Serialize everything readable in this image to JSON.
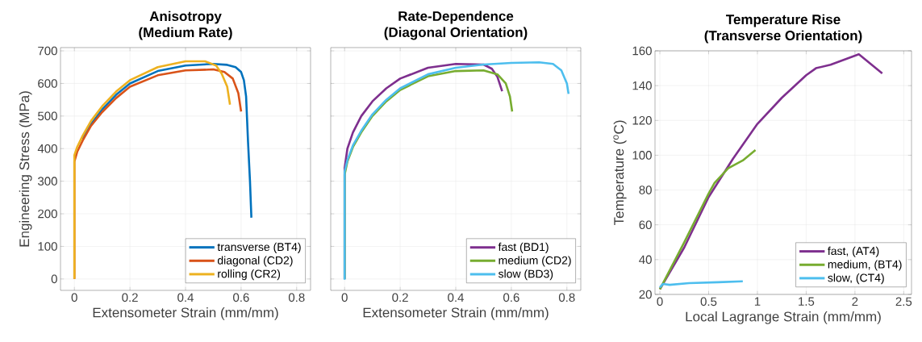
{
  "chart_data": [
    {
      "type": "line",
      "title": "Anisotropy",
      "subtitle": "(Medium Rate)",
      "xlabel": "Extensometer Strain (mm/mm)",
      "ylabel": "Engineering Stress (MPa)",
      "xlim": [
        -0.05,
        0.85
      ],
      "ylim": [
        -35,
        710
      ],
      "xticks": [
        0,
        0.2,
        0.4,
        0.6,
        0.8
      ],
      "yticks": [
        0,
        100,
        200,
        300,
        400,
        500,
        600,
        700
      ],
      "grid": true,
      "legend": "bottom right",
      "series": [
        {
          "name": "transverse (BT4)",
          "color": "#0072bd",
          "x": [
            0.03,
            0.06,
            0.1,
            0.15,
            0.2,
            0.3,
            0.4,
            0.5,
            0.55,
            0.58,
            0.6,
            0.61,
            0.618,
            0.625,
            0.632,
            0.637
          ],
          "values": [
            430,
            475,
            520,
            565,
            600,
            638,
            655,
            660,
            657,
            650,
            635,
            610,
            560,
            420,
            300,
            188
          ]
        },
        {
          "name": "diagonal (CD2)",
          "color": "#d95319",
          "x": [
            0,
            0,
            0.01,
            0.03,
            0.06,
            0.1,
            0.15,
            0.2,
            0.3,
            0.4,
            0.5,
            0.54,
            0.57,
            0.59,
            0.6
          ],
          "values": [
            0,
            360,
            390,
            425,
            470,
            512,
            555,
            590,
            625,
            640,
            643,
            635,
            615,
            570,
            514
          ]
        },
        {
          "name": "rolling (CR2)",
          "color": "#edb120",
          "x": [
            0,
            0,
            0.01,
            0.03,
            0.06,
            0.1,
            0.15,
            0.2,
            0.3,
            0.4,
            0.47,
            0.51,
            0.53,
            0.55,
            0.56
          ],
          "values": [
            0,
            380,
            405,
            440,
            485,
            530,
            575,
            610,
            650,
            668,
            668,
            655,
            630,
            590,
            535
          ]
        }
      ]
    },
    {
      "type": "line",
      "title": "Rate-Dependence",
      "subtitle": "(Diagonal Orientation)",
      "xlabel": "Extensometer Strain (mm/mm)",
      "xlim": [
        -0.05,
        0.85
      ],
      "ylim": [
        -35,
        710
      ],
      "xticks": [
        0,
        0.2,
        0.4,
        0.6,
        0.8
      ],
      "yticks": [
        0,
        100,
        200,
        300,
        400,
        500,
        600,
        700
      ],
      "grid": true,
      "legend": "bottom right",
      "tick_labels": "x",
      "series": [
        {
          "name": "fast (BD1)",
          "color": "#7e2f8e",
          "x": [
            0,
            0,
            0.01,
            0.03,
            0.06,
            0.1,
            0.15,
            0.2,
            0.3,
            0.4,
            0.5,
            0.53,
            0.55,
            0.567
          ],
          "values": [
            0,
            340,
            400,
            450,
            500,
            545,
            585,
            615,
            648,
            660,
            658,
            645,
            620,
            576
          ]
        },
        {
          "name": "medium (CD2)",
          "color": "#77ac30",
          "x": [
            0,
            0,
            0.01,
            0.03,
            0.06,
            0.1,
            0.15,
            0.2,
            0.3,
            0.4,
            0.5,
            0.55,
            0.58,
            0.595,
            0.603
          ],
          "values": [
            0,
            320,
            360,
            405,
            450,
            500,
            545,
            580,
            622,
            638,
            640,
            628,
            600,
            560,
            514
          ]
        },
        {
          "name": "slow (BD3)",
          "color": "#4dbeee",
          "x": [
            0,
            0,
            0.01,
            0.03,
            0.06,
            0.1,
            0.15,
            0.2,
            0.3,
            0.4,
            0.5,
            0.6,
            0.7,
            0.75,
            0.78,
            0.8,
            0.806
          ],
          "values": [
            -2,
            330,
            365,
            410,
            455,
            505,
            550,
            585,
            628,
            648,
            658,
            663,
            665,
            660,
            640,
            600,
            568
          ]
        }
      ]
    },
    {
      "type": "line",
      "title": "Temperature Rise",
      "subtitle": "(Transverse Orientation)",
      "xlabel": "Local Lagrange Strain (mm/mm)",
      "ylabel": "Temperature ($^{o}$C)",
      "xlim": [
        -0.05,
        2.58
      ],
      "ylim": [
        20,
        160
      ],
      "xticks": [
        0,
        0.5,
        1,
        1.5,
        2,
        2.5
      ],
      "yticks": [
        20,
        40,
        60,
        80,
        100,
        120,
        140,
        160
      ],
      "grid": true,
      "legend": "bottom right",
      "series": [
        {
          "name": "fast, (AT4)",
          "color": "#7e2f8e",
          "x": [
            0,
            0.25,
            0.5,
            0.75,
            1,
            1.25,
            1.5,
            1.6,
            1.75,
            2.04,
            2.28
          ],
          "values": [
            23,
            47,
            76,
            98,
            118,
            133,
            146,
            150,
            152,
            158,
            147
          ]
        },
        {
          "name": "medium, (BT4)",
          "color": "#77ac30",
          "x": [
            0,
            0.25,
            0.5,
            0.56,
            0.7,
            0.85,
            0.98
          ],
          "values": [
            23,
            50,
            78,
            84,
            92.5,
            97,
            103
          ]
        },
        {
          "name": "slow, (CT4)",
          "color": "#4dbeee",
          "x": [
            0,
            0.03,
            0.1,
            0.3,
            0.6,
            0.85
          ],
          "values": [
            24,
            26,
            25.5,
            26.5,
            27,
            27.5
          ]
        }
      ]
    }
  ]
}
